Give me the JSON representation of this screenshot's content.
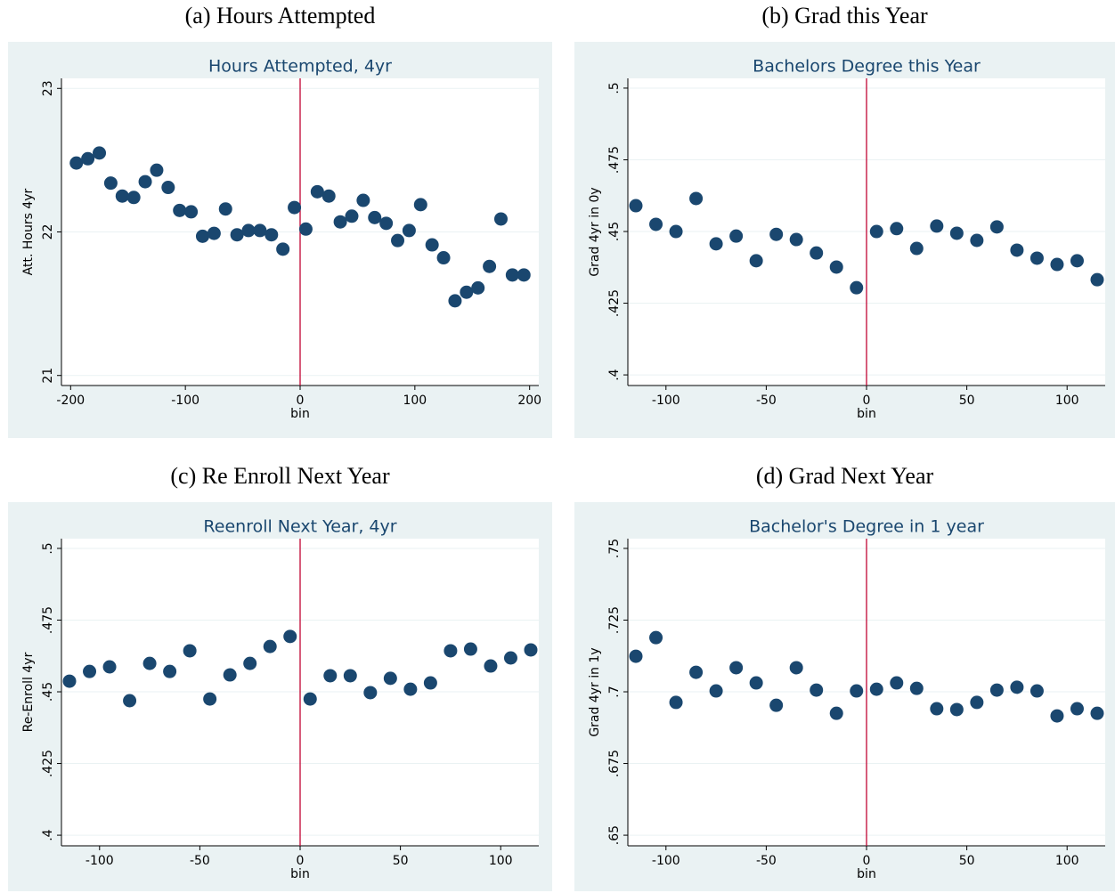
{
  "chart_data": [
    {
      "type": "scatter",
      "caption": "(a) Hours Attempted",
      "title": "Hours Attempted, 4yr",
      "xlabel": "bin",
      "ylabel": "Att. Hours 4yr",
      "color": "#1a476f",
      "vline": 0,
      "vline_color": "#c10534",
      "x": [
        -195,
        -185,
        -175,
        -165,
        -155,
        -145,
        -135,
        -125,
        -115,
        -105,
        -95,
        -85,
        -75,
        -65,
        -55,
        -45,
        -35,
        -25,
        -15,
        -5,
        5,
        15,
        25,
        35,
        45,
        55,
        65,
        75,
        85,
        95,
        105,
        115,
        125,
        135,
        145,
        155,
        165,
        175,
        185,
        195
      ],
      "values": [
        22.48,
        22.51,
        22.55,
        22.34,
        22.25,
        22.24,
        22.35,
        22.43,
        22.31,
        22.15,
        22.14,
        21.97,
        21.99,
        22.16,
        21.98,
        22.01,
        22.01,
        21.98,
        21.88,
        22.17,
        22.02,
        22.28,
        22.25,
        22.07,
        22.11,
        22.22,
        22.1,
        22.06,
        21.94,
        22.01,
        22.19,
        21.91,
        21.82,
        21.52,
        21.58,
        21.61,
        21.76,
        22.09,
        21.7,
        21.7
      ],
      "xlim": [
        -208,
        208
      ],
      "ylim": [
        20.93,
        23.07
      ],
      "xticks": [
        -200,
        -100,
        0,
        100,
        200
      ],
      "yticks": [
        21,
        22,
        23
      ]
    },
    {
      "type": "scatter",
      "caption": "(b) Grad this Year",
      "title": "Bachelors Degree this Year",
      "xlabel": "bin",
      "ylabel": "Grad 4yr in 0y",
      "color": "#1a476f",
      "vline": 0,
      "vline_color": "#c10534",
      "x": [
        -115,
        -105,
        -95,
        -85,
        -75,
        -65,
        -55,
        -45,
        -35,
        -25,
        -15,
        -5,
        5,
        15,
        25,
        35,
        45,
        55,
        65,
        75,
        85,
        95,
        105,
        115
      ],
      "values": [
        0.459,
        0.4525,
        0.45,
        0.4615,
        0.4457,
        0.4484,
        0.4398,
        0.449,
        0.4472,
        0.4425,
        0.4376,
        0.4304,
        0.45,
        0.451,
        0.4441,
        0.4519,
        0.4494,
        0.4469,
        0.4516,
        0.4435,
        0.4407,
        0.4385,
        0.4398,
        0.4332
      ],
      "xlim": [
        -119,
        119
      ],
      "ylim": [
        0.3963,
        0.5034
      ],
      "xticks": [
        -100,
        -50,
        0,
        50,
        100
      ],
      "yticks": [
        {
          "value": 0.4,
          "label": ".4"
        },
        {
          "value": 0.425,
          "label": ".425"
        },
        {
          "value": 0.45,
          "label": ".45"
        },
        {
          "value": 0.475,
          "label": ".475"
        },
        {
          "value": 0.5,
          "label": ".5"
        }
      ]
    },
    {
      "type": "scatter",
      "caption": "(c) Re Enroll Next Year",
      "title": "Reenroll Next Year, 4yr",
      "xlabel": "bin",
      "ylabel": "Re-Enroll 4yr",
      "color": "#1a476f",
      "vline": 0,
      "vline_color": "#c10534",
      "x": [
        -115,
        -105,
        -95,
        -85,
        -75,
        -65,
        -55,
        -45,
        -35,
        -25,
        -15,
        -5,
        5,
        15,
        25,
        35,
        45,
        55,
        65,
        75,
        85,
        95,
        105,
        115
      ],
      "values": [
        0.4537,
        0.4571,
        0.4587,
        0.4469,
        0.4599,
        0.4571,
        0.4643,
        0.4475,
        0.4559,
        0.4599,
        0.4658,
        0.4693,
        0.4475,
        0.4556,
        0.4556,
        0.4497,
        0.4547,
        0.4509,
        0.4531,
        0.4643,
        0.4649,
        0.459,
        0.4618,
        0.4646
      ],
      "xlim": [
        -119,
        119
      ],
      "ylim": [
        0.3963,
        0.5034
      ],
      "xticks": [
        -100,
        -50,
        0,
        50,
        100
      ],
      "yticks": [
        {
          "value": 0.4,
          "label": ".4"
        },
        {
          "value": 0.425,
          "label": ".425"
        },
        {
          "value": 0.45,
          "label": ".45"
        },
        {
          "value": 0.475,
          "label": ".475"
        },
        {
          "value": 0.5,
          "label": ".5"
        }
      ]
    },
    {
      "type": "scatter",
      "caption": "(d) Grad Next Year",
      "title": "Bachelor's Degree in 1 year",
      "xlabel": "bin",
      "ylabel": "Grad 4yr in 1y",
      "color": "#1a476f",
      "vline": 0,
      "vline_color": "#c10534",
      "x": [
        -115,
        -105,
        -95,
        -85,
        -75,
        -65,
        -55,
        -45,
        -35,
        -25,
        -15,
        -5,
        5,
        15,
        25,
        35,
        45,
        55,
        65,
        75,
        85,
        95,
        105,
        115
      ],
      "values": [
        0.7124,
        0.7189,
        0.6963,
        0.7068,
        0.7003,
        0.7084,
        0.7031,
        0.6953,
        0.7084,
        0.7006,
        0.6925,
        0.7003,
        0.7009,
        0.7031,
        0.7012,
        0.6941,
        0.6938,
        0.6963,
        0.7006,
        0.7016,
        0.7003,
        0.6916,
        0.6941,
        0.6925
      ],
      "xlim": [
        -119,
        119
      ],
      "ylim": [
        0.6463,
        0.7534
      ],
      "xticks": [
        -100,
        -50,
        0,
        50,
        100
      ],
      "yticks": [
        {
          "value": 0.65,
          "label": ".65"
        },
        {
          "value": 0.675,
          "label": ".675"
        },
        {
          "value": 0.7,
          "label": ".7"
        },
        {
          "value": 0.725,
          "label": ".725"
        },
        {
          "value": 0.75,
          "label": ".75"
        }
      ]
    }
  ]
}
